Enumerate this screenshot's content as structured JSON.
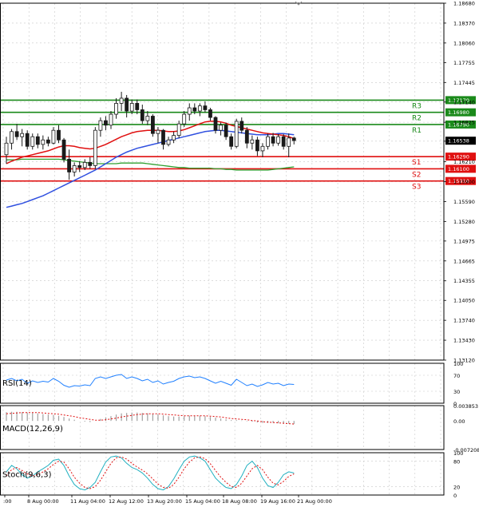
{
  "chart_data": {
    "type": "candlestick",
    "colors": {
      "bull_fill": "#ffffff",
      "bear_fill": "#1a1a1a",
      "wick": "#1a1a1a",
      "resistance": "#1a8a1a",
      "support": "#e01010",
      "ma_fast": "#e01010",
      "ma_mid": "#3050e0",
      "ma_slow": "#30a030",
      "rsi": "#2080ff",
      "macd_hist": "#a0a0a0",
      "macd_signal": "#e01010",
      "stoch_main": "#20b0c0",
      "stoch_signal": "#e01010",
      "current_label_bg": "#000000"
    },
    "price_axis": {
      "ylim": [
        1.1312,
        1.1868
      ],
      "ticks": [
        "1.18680",
        "1.18370",
        "1.18060",
        "1.17755",
        "1.17445",
        "1.17140",
        "1.16825",
        "1.16530",
        "1.16210",
        "1.15900",
        "1.15590",
        "1.15280",
        "1.14975",
        "1.14665",
        "1.14355",
        "1.14050",
        "1.13740",
        "1.13430",
        "1.13120"
      ]
    },
    "time_axis": {
      "labels": [
        ":00",
        "8 Aug 00:00",
        "11 Aug 04:00",
        "12 Aug 12:00",
        "13 Aug 20:00",
        "15 Aug 04:00",
        "18 Aug 08:00",
        "19 Aug 16:00",
        "21 Aug 00:00"
      ]
    },
    "levels": [
      {
        "name": "R3",
        "value": 1.1717,
        "label": "1.17170",
        "kind": "resistance"
      },
      {
        "name": "R2",
        "value": 1.1698,
        "label": "1.16980",
        "kind": "resistance"
      },
      {
        "name": "R1",
        "value": 1.1679,
        "label": "1.16790",
        "kind": "resistance"
      },
      {
        "name": "S1",
        "value": 1.1629,
        "label": "1.16290",
        "kind": "support"
      },
      {
        "name": "S2",
        "value": 1.161,
        "label": "1.16100",
        "kind": "support"
      },
      {
        "name": "S3",
        "value": 1.1591,
        "label": "1.15910",
        "kind": "support"
      }
    ],
    "current_price": {
      "value": 1.16538,
      "label": "1.16538"
    },
    "candles": [
      {
        "o": 1.1632,
        "h": 1.166,
        "l": 1.1618,
        "c": 1.165
      },
      {
        "o": 1.165,
        "h": 1.1672,
        "l": 1.164,
        "c": 1.1668
      },
      {
        "o": 1.1668,
        "h": 1.168,
        "l": 1.1655,
        "c": 1.166
      },
      {
        "o": 1.166,
        "h": 1.1672,
        "l": 1.1645,
        "c": 1.1665
      },
      {
        "o": 1.1665,
        "h": 1.167,
        "l": 1.164,
        "c": 1.1645
      },
      {
        "o": 1.1645,
        "h": 1.1665,
        "l": 1.164,
        "c": 1.166
      },
      {
        "o": 1.166,
        "h": 1.1665,
        "l": 1.1642,
        "c": 1.1648
      },
      {
        "o": 1.1648,
        "h": 1.1662,
        "l": 1.164,
        "c": 1.1655
      },
      {
        "o": 1.1655,
        "h": 1.166,
        "l": 1.1645,
        "c": 1.165
      },
      {
        "o": 1.165,
        "h": 1.1675,
        "l": 1.1648,
        "c": 1.167
      },
      {
        "o": 1.167,
        "h": 1.1678,
        "l": 1.165,
        "c": 1.1655
      },
      {
        "o": 1.1655,
        "h": 1.1658,
        "l": 1.162,
        "c": 1.1625
      },
      {
        "o": 1.1625,
        "h": 1.164,
        "l": 1.1593,
        "c": 1.1605
      },
      {
        "o": 1.1605,
        "h": 1.162,
        "l": 1.1598,
        "c": 1.1615
      },
      {
        "o": 1.1615,
        "h": 1.1622,
        "l": 1.1605,
        "c": 1.1612
      },
      {
        "o": 1.1612,
        "h": 1.1625,
        "l": 1.1608,
        "c": 1.162
      },
      {
        "o": 1.162,
        "h": 1.1628,
        "l": 1.161,
        "c": 1.1615
      },
      {
        "o": 1.1615,
        "h": 1.1675,
        "l": 1.161,
        "c": 1.167
      },
      {
        "o": 1.167,
        "h": 1.169,
        "l": 1.166,
        "c": 1.1685
      },
      {
        "o": 1.1685,
        "h": 1.1692,
        "l": 1.167,
        "c": 1.1678
      },
      {
        "o": 1.1678,
        "h": 1.17,
        "l": 1.1672,
        "c": 1.1695
      },
      {
        "o": 1.1695,
        "h": 1.172,
        "l": 1.1688,
        "c": 1.1712
      },
      {
        "o": 1.1712,
        "h": 1.173,
        "l": 1.17,
        "c": 1.172
      },
      {
        "o": 1.172,
        "h": 1.1725,
        "l": 1.169,
        "c": 1.17
      },
      {
        "o": 1.17,
        "h": 1.1718,
        "l": 1.1695,
        "c": 1.1712
      },
      {
        "o": 1.1712,
        "h": 1.1718,
        "l": 1.1695,
        "c": 1.1702
      },
      {
        "o": 1.1702,
        "h": 1.171,
        "l": 1.168,
        "c": 1.1685
      },
      {
        "o": 1.1685,
        "h": 1.17,
        "l": 1.1678,
        "c": 1.1692
      },
      {
        "o": 1.1692,
        "h": 1.1695,
        "l": 1.166,
        "c": 1.1665
      },
      {
        "o": 1.1665,
        "h": 1.1675,
        "l": 1.165,
        "c": 1.167
      },
      {
        "o": 1.167,
        "h": 1.1672,
        "l": 1.164,
        "c": 1.1648
      },
      {
        "o": 1.1648,
        "h": 1.166,
        "l": 1.1645,
        "c": 1.1655
      },
      {
        "o": 1.1655,
        "h": 1.1668,
        "l": 1.165,
        "c": 1.1662
      },
      {
        "o": 1.1662,
        "h": 1.1685,
        "l": 1.1658,
        "c": 1.168
      },
      {
        "o": 1.168,
        "h": 1.17,
        "l": 1.1675,
        "c": 1.1695
      },
      {
        "o": 1.1695,
        "h": 1.1712,
        "l": 1.1685,
        "c": 1.1705
      },
      {
        "o": 1.1705,
        "h": 1.1712,
        "l": 1.1695,
        "c": 1.17
      },
      {
        "o": 1.17,
        "h": 1.1712,
        "l": 1.1692,
        "c": 1.1708
      },
      {
        "o": 1.1708,
        "h": 1.1715,
        "l": 1.1698,
        "c": 1.1702
      },
      {
        "o": 1.1702,
        "h": 1.1705,
        "l": 1.1685,
        "c": 1.169
      },
      {
        "o": 1.169,
        "h": 1.1692,
        "l": 1.1665,
        "c": 1.167
      },
      {
        "o": 1.167,
        "h": 1.1682,
        "l": 1.1662,
        "c": 1.1678
      },
      {
        "o": 1.1678,
        "h": 1.1682,
        "l": 1.1655,
        "c": 1.166
      },
      {
        "o": 1.166,
        "h": 1.1665,
        "l": 1.164,
        "c": 1.1645
      },
      {
        "o": 1.1645,
        "h": 1.1688,
        "l": 1.1642,
        "c": 1.1684
      },
      {
        "o": 1.1684,
        "h": 1.169,
        "l": 1.1665,
        "c": 1.167
      },
      {
        "o": 1.167,
        "h": 1.1675,
        "l": 1.1642,
        "c": 1.165
      },
      {
        "o": 1.165,
        "h": 1.1662,
        "l": 1.164,
        "c": 1.1655
      },
      {
        "o": 1.1655,
        "h": 1.166,
        "l": 1.163,
        "c": 1.1638
      },
      {
        "o": 1.1638,
        "h": 1.165,
        "l": 1.1628,
        "c": 1.1645
      },
      {
        "o": 1.1645,
        "h": 1.1665,
        "l": 1.164,
        "c": 1.166
      },
      {
        "o": 1.166,
        "h": 1.1666,
        "l": 1.1645,
        "c": 1.165
      },
      {
        "o": 1.165,
        "h": 1.1664,
        "l": 1.1646,
        "c": 1.166
      },
      {
        "o": 1.166,
        "h": 1.1664,
        "l": 1.164,
        "c": 1.1645
      },
      {
        "o": 1.1645,
        "h": 1.1665,
        "l": 1.1628,
        "c": 1.1658
      },
      {
        "o": 1.1658,
        "h": 1.166,
        "l": 1.1648,
        "c": 1.1654
      }
    ],
    "moving_averages": {
      "fast": [
        1.1618,
        1.1622,
        1.1625,
        1.1628,
        1.163,
        1.1632,
        1.1634,
        1.1636,
        1.1638,
        1.1641,
        1.1644,
        1.1646,
        1.1646,
        1.1645,
        1.1643,
        1.1642,
        1.1641,
        1.1642,
        1.1645,
        1.1648,
        1.1652,
        1.1656,
        1.166,
        1.1663,
        1.1666,
        1.1668,
        1.1669,
        1.167,
        1.167,
        1.167,
        1.1669,
        1.1668,
        1.1668,
        1.1669,
        1.1671,
        1.1674,
        1.1677,
        1.168,
        1.1683,
        1.1684,
        1.1684,
        1.1683,
        1.1681,
        1.1678,
        1.1676,
        1.1674,
        1.1672,
        1.167,
        1.1668,
        1.1666,
        1.1665,
        1.1664,
        1.1663,
        1.1662,
        1.166,
        1.1657
      ],
      "mid": [
        1.155,
        1.1552,
        1.1554,
        1.1556,
        1.1559,
        1.1562,
        1.1565,
        1.1568,
        1.1572,
        1.1576,
        1.158,
        1.1584,
        1.1588,
        1.1592,
        1.1596,
        1.16,
        1.1604,
        1.1608,
        1.1613,
        1.1618,
        1.1623,
        1.1628,
        1.1632,
        1.1636,
        1.1639,
        1.1642,
        1.1644,
        1.1646,
        1.1648,
        1.165,
        1.1652,
        1.1654,
        1.1656,
        1.1658,
        1.166,
        1.1662,
        1.1664,
        1.1666,
        1.1668,
        1.1669,
        1.167,
        1.167,
        1.1669,
        1.1668,
        1.1667,
        1.1666,
        1.1665,
        1.1664,
        1.1663,
        1.1663,
        1.1663,
        1.1664,
        1.1665,
        1.1665,
        1.1664,
        1.1663
      ],
      "slow": [
        1.1624,
        1.1624,
        1.1624,
        1.1625,
        1.1625,
        1.1625,
        1.1625,
        1.1625,
        1.1625,
        1.1625,
        1.1625,
        1.1624,
        1.1623,
        1.1622,
        1.1621,
        1.162,
        1.1619,
        1.1618,
        1.1618,
        1.1618,
        1.1618,
        1.1618,
        1.1619,
        1.1619,
        1.1619,
        1.1619,
        1.1619,
        1.1618,
        1.1617,
        1.1616,
        1.1615,
        1.1614,
        1.1613,
        1.1612,
        1.1612,
        1.1611,
        1.1611,
        1.1611,
        1.1611,
        1.1611,
        1.161,
        1.161,
        1.1609,
        1.1609,
        1.1608,
        1.1608,
        1.1608,
        1.1608,
        1.1608,
        1.1608,
        1.1608,
        1.1609,
        1.161,
        1.1611,
        1.1612,
        1.1613
      ]
    },
    "rsi": {
      "label": "RSI(14)",
      "ticks": [
        "100",
        "70",
        "30",
        "0"
      ],
      "ylim": [
        0,
        100
      ],
      "values": [
        58,
        62,
        56,
        60,
        50,
        56,
        52,
        55,
        53,
        62,
        55,
        45,
        40,
        44,
        43,
        46,
        44,
        62,
        66,
        62,
        66,
        70,
        72,
        62,
        66,
        62,
        56,
        60,
        52,
        56,
        48,
        52,
        55,
        62,
        66,
        68,
        64,
        66,
        62,
        56,
        50,
        55,
        50,
        45,
        60,
        52,
        44,
        48,
        42,
        46,
        52,
        48,
        50,
        44,
        48,
        47
      ]
    },
    "macd": {
      "label": "MACD(12,26,9)",
      "ticks": [
        "0.003853",
        "0.00",
        "-0.007208"
      ],
      "ylim": [
        -0.007208,
        0.003853
      ],
      "hist": [
        0.0022,
        0.0023,
        0.0023,
        0.0022,
        0.0021,
        0.002,
        0.0019,
        0.0017,
        0.0016,
        0.0015,
        0.0013,
        0.001,
        0.0006,
        0.0003,
        0.0,
        -0.0002,
        -0.0003,
        0.0,
        0.0005,
        0.0009,
        0.0012,
        0.0016,
        0.0019,
        0.002,
        0.0021,
        0.0021,
        0.002,
        0.0019,
        0.0017,
        0.0016,
        0.0014,
        0.0012,
        0.0011,
        0.0011,
        0.0012,
        0.0013,
        0.0013,
        0.0013,
        0.0012,
        0.001,
        0.0008,
        0.0006,
        0.0004,
        0.0002,
        0.0002,
        0.0001,
        -0.0001,
        -0.0002,
        -0.0004,
        -0.0005,
        -0.0005,
        -0.0005,
        -0.0006,
        -0.0007,
        -0.0007,
        -0.0008
      ],
      "signal": [
        0.0018,
        0.0019,
        0.002,
        0.0021,
        0.0021,
        0.0021,
        0.0021,
        0.002,
        0.0019,
        0.0018,
        0.0017,
        0.0015,
        0.0013,
        0.0011,
        0.0008,
        0.0006,
        0.0004,
        0.0002,
        0.0002,
        0.0003,
        0.0005,
        0.0007,
        0.001,
        0.0012,
        0.0014,
        0.0016,
        0.0017,
        0.0018,
        0.0018,
        0.0018,
        0.0017,
        0.0016,
        0.0015,
        0.0014,
        0.0013,
        0.0013,
        0.0013,
        0.0013,
        0.0013,
        0.0012,
        0.0011,
        0.001,
        0.0008,
        0.0006,
        0.0005,
        0.0004,
        0.0003,
        0.0001,
        0.0,
        -0.0002,
        -0.0003,
        -0.0004,
        -0.0005,
        -0.0006,
        -0.0007,
        -0.0008
      ]
    },
    "stoch": {
      "label": "Stoch(9,6,3)",
      "ticks": [
        "100",
        "80",
        "20",
        "0"
      ],
      "ylim": [
        0,
        100
      ],
      "main": [
        55,
        70,
        62,
        48,
        40,
        45,
        55,
        62,
        70,
        82,
        85,
        70,
        45,
        25,
        15,
        12,
        18,
        30,
        55,
        78,
        90,
        92,
        88,
        75,
        65,
        60,
        52,
        40,
        25,
        15,
        12,
        20,
        38,
        60,
        80,
        90,
        92,
        88,
        80,
        60,
        40,
        28,
        18,
        15,
        25,
        45,
        70,
        80,
        65,
        40,
        22,
        18,
        30,
        48,
        55,
        52
      ],
      "signal": [
        45,
        60,
        65,
        58,
        50,
        45,
        48,
        55,
        62,
        72,
        80,
        78,
        62,
        42,
        28,
        18,
        15,
        20,
        35,
        55,
        75,
        88,
        90,
        85,
        75,
        66,
        59,
        50,
        38,
        26,
        18,
        16,
        25,
        42,
        62,
        78,
        88,
        90,
        86,
        74,
        58,
        42,
        30,
        20,
        18,
        28,
        45,
        62,
        70,
        60,
        42,
        28,
        24,
        32,
        44,
        50
      ]
    }
  }
}
